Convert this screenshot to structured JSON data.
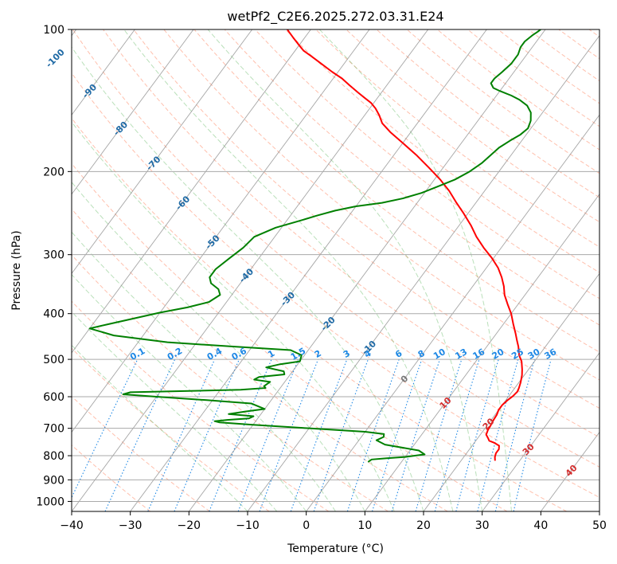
{
  "chart_data": {
    "type": "skew-t",
    "title": "wetPf2_C2E6.2025.272.03.31.E24",
    "xlabel": "Temperature (°C)",
    "ylabel": "Pressure (hPa)",
    "xlim": [
      -40,
      50
    ],
    "ylim": [
      1050,
      100
    ],
    "x_ticks": [
      -40,
      -30,
      -20,
      -10,
      0,
      10,
      20,
      30,
      40,
      50
    ],
    "x_tick_labels": [
      "−40",
      "−30",
      "−20",
      "−10",
      "0",
      "10",
      "20",
      "30",
      "40",
      "50"
    ],
    "y_ticks": [
      100,
      200,
      300,
      400,
      500,
      600,
      700,
      800,
      900,
      1000
    ],
    "y_tick_labels": [
      "100",
      "200",
      "300",
      "400",
      "500",
      "600",
      "700",
      "800",
      "900",
      "1000"
    ],
    "grid": true,
    "colors": {
      "temperature": "#ff0000",
      "dewpoint": "#008000",
      "isotherm": "#888888",
      "dry_adiabat": "#ff8c69",
      "moist_adiabat": "#66bb66",
      "mixing_ratio": "#1e88e5",
      "isotherm_label": "#1f6aa5",
      "warm_label": "#d32f2f",
      "zero_label": "#777777",
      "curved_line": "#c8a37c"
    },
    "isotherm_labels": [
      {
        "text": "-100",
        "temp": -100,
        "p": 115
      },
      {
        "text": "-90",
        "temp": -90,
        "p": 135
      },
      {
        "text": "-80",
        "temp": -80,
        "p": 162
      },
      {
        "text": "-70",
        "temp": -70,
        "p": 192
      },
      {
        "text": "-60",
        "temp": -60,
        "p": 233
      },
      {
        "text": "-50",
        "temp": -50,
        "p": 282
      },
      {
        "text": "-40",
        "temp": -40,
        "p": 332
      },
      {
        "text": "-30",
        "temp": -30,
        "p": 372
      },
      {
        "text": "-20",
        "temp": -20,
        "p": 420
      },
      {
        "text": "-10",
        "temp": -10,
        "p": 472
      },
      {
        "text": "0",
        "temp": 0,
        "p": 550
      },
      {
        "text": "10",
        "temp": 10,
        "p": 618
      },
      {
        "text": "20",
        "temp": 20,
        "p": 685
      },
      {
        "text": "30",
        "temp": 30,
        "p": 775
      },
      {
        "text": "40",
        "temp": 40,
        "p": 860
      }
    ],
    "mixing_ratios": [
      0.1,
      0.2,
      0.4,
      0.6,
      1,
      1.5,
      2,
      3,
      4,
      6,
      8,
      10,
      13,
      16,
      20,
      25,
      30,
      36
    ],
    "mixing_ratio_labels": [
      "0.1",
      "0.2",
      "0.4",
      "0.6",
      "1",
      "1.5",
      "2",
      "3",
      "4",
      "6",
      "8",
      "10",
      "13",
      "16",
      "20",
      "25",
      "30",
      "36"
    ],
    "mixing_ratio_label_pressure": 493,
    "series": [
      {
        "name": "temperature",
        "points": [
          [
            25.8,
            820
          ],
          [
            25.3,
            805
          ],
          [
            25.0,
            790
          ],
          [
            25.0,
            775
          ],
          [
            24.6,
            762
          ],
          [
            23.5,
            752
          ],
          [
            22.3,
            744
          ],
          [
            21.8,
            735
          ],
          [
            21.0,
            722
          ],
          [
            20.7,
            705
          ],
          [
            20.6,
            690
          ],
          [
            20.4,
            672
          ],
          [
            20.3,
            655
          ],
          [
            20.0,
            640
          ],
          [
            20.0,
            625
          ],
          [
            20.3,
            610
          ],
          [
            20.7,
            598
          ],
          [
            20.9,
            585
          ],
          [
            20.7,
            575
          ],
          [
            20.3,
            560
          ],
          [
            19.6,
            540
          ],
          [
            18.9,
            525
          ],
          [
            17.8,
            505
          ],
          [
            16.6,
            490
          ],
          [
            15.4,
            470
          ],
          [
            14.3,
            455
          ],
          [
            13.2,
            440
          ],
          [
            11.6,
            420
          ],
          [
            10.0,
            400
          ],
          [
            8.2,
            382
          ],
          [
            6.5,
            365
          ],
          [
            5.3,
            350
          ],
          [
            3.8,
            335
          ],
          [
            2.0,
            320
          ],
          [
            -0.3,
            305
          ],
          [
            -3.0,
            290
          ],
          [
            -5.6,
            275
          ],
          [
            -8.0,
            260
          ],
          [
            -10.8,
            245
          ],
          [
            -13.5,
            232
          ],
          [
            -16.0,
            220
          ],
          [
            -19.0,
            208
          ],
          [
            -22.5,
            196
          ],
          [
            -26.0,
            185
          ],
          [
            -30.0,
            174
          ],
          [
            -33.5,
            165
          ],
          [
            -36.0,
            158
          ],
          [
            -37.5,
            152
          ],
          [
            -39.0,
            147
          ],
          [
            -40.5,
            143
          ],
          [
            -42.0,
            140
          ],
          [
            -44.0,
            136
          ],
          [
            -46.5,
            131
          ],
          [
            -48.5,
            127
          ],
          [
            -51.0,
            123
          ],
          [
            -54.0,
            118
          ],
          [
            -56.5,
            114
          ],
          [
            -58.5,
            111
          ],
          [
            -60.0,
            108
          ],
          [
            -62.0,
            104
          ],
          [
            -63.5,
            101
          ],
          [
            -64.0,
            100
          ]
        ]
      },
      {
        "name": "dewpoint",
        "points": [
          [
            4.3,
            825
          ],
          [
            4.6,
            815
          ],
          [
            7.0,
            810
          ],
          [
            10.0,
            805
          ],
          [
            13.0,
            795
          ],
          [
            11.5,
            780
          ],
          [
            5.0,
            758
          ],
          [
            3.0,
            742
          ],
          [
            3.8,
            730
          ],
          [
            3.5,
            720
          ],
          [
            0.0,
            712
          ],
          [
            -10.0,
            700
          ],
          [
            -20.0,
            688
          ],
          [
            -26.0,
            680
          ],
          [
            -27.0,
            676
          ],
          [
            -25.0,
            672
          ],
          [
            -21.5,
            667
          ],
          [
            -21.0,
            660
          ],
          [
            -25.5,
            653
          ],
          [
            -23.0,
            645
          ],
          [
            -20.0,
            637
          ],
          [
            -23.0,
            620
          ],
          [
            -31.0,
            610
          ],
          [
            -40.0,
            600
          ],
          [
            -46.0,
            593
          ],
          [
            -45.0,
            587
          ],
          [
            -26.5,
            580
          ],
          [
            -22.5,
            575
          ],
          [
            -23.0,
            570
          ],
          [
            -22.5,
            558
          ],
          [
            -25.5,
            552
          ],
          [
            -25.0,
            545
          ],
          [
            -21.0,
            538
          ],
          [
            -21.5,
            530
          ],
          [
            -25.0,
            520
          ],
          [
            -23.0,
            512
          ],
          [
            -20.0,
            505
          ],
          [
            -20.5,
            490
          ],
          [
            -23.0,
            478
          ],
          [
            -33.0,
            470
          ],
          [
            -45.0,
            460
          ],
          [
            -55.0,
            445
          ],
          [
            -60.0,
            430
          ],
          [
            -57.0,
            420
          ],
          [
            -50.0,
            398
          ],
          [
            -46.0,
            388
          ],
          [
            -43.0,
            378
          ],
          [
            -42.0,
            365
          ],
          [
            -43.0,
            355
          ],
          [
            -45.0,
            345
          ],
          [
            -46.0,
            335
          ],
          [
            -46.0,
            322
          ],
          [
            -45.0,
            305
          ],
          [
            -44.0,
            290
          ],
          [
            -43.5,
            275
          ],
          [
            -41.0,
            263
          ],
          [
            -38.0,
            255
          ],
          [
            -35.5,
            248
          ],
          [
            -33.0,
            242
          ],
          [
            -30.0,
            237
          ],
          [
            -26.0,
            233
          ],
          [
            -23.0,
            228
          ],
          [
            -20.5,
            222
          ],
          [
            -18.5,
            215
          ],
          [
            -16.5,
            208
          ],
          [
            -15.0,
            200
          ],
          [
            -14.0,
            192
          ],
          [
            -13.5,
            185
          ],
          [
            -13.0,
            178
          ],
          [
            -12.0,
            172
          ],
          [
            -11.0,
            167
          ],
          [
            -10.5,
            162
          ],
          [
            -11.0,
            156
          ],
          [
            -12.0,
            150
          ],
          [
            -13.5,
            145
          ],
          [
            -15.5,
            141
          ],
          [
            -17.5,
            138
          ],
          [
            -20.0,
            135
          ],
          [
            -21.5,
            133
          ],
          [
            -22.5,
            130
          ],
          [
            -22.5,
            127
          ],
          [
            -22.0,
            123
          ],
          [
            -21.5,
            118
          ],
          [
            -21.5,
            113
          ],
          [
            -22.0,
            109
          ],
          [
            -22.0,
            106
          ],
          [
            -21.5,
            103
          ],
          [
            -21.0,
            101
          ],
          [
            -20.8,
            100
          ]
        ]
      }
    ]
  }
}
